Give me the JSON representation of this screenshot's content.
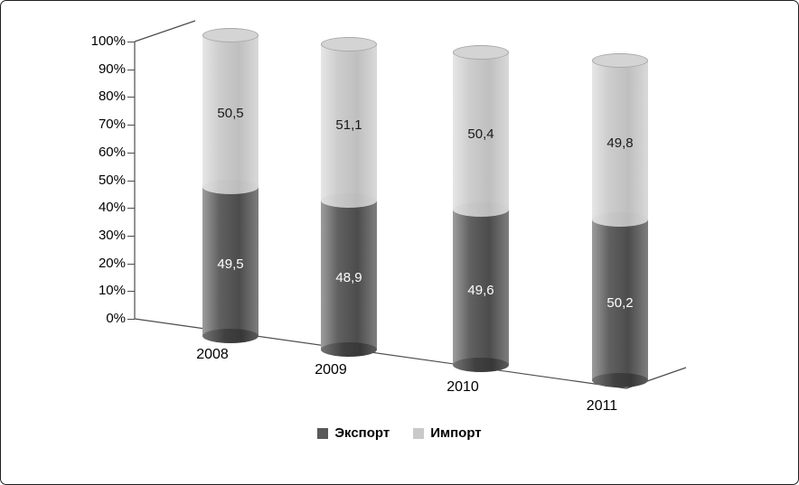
{
  "chart_data": {
    "type": "bar",
    "subtype": "3d-stacked-cylinder",
    "stacked": true,
    "categories": [
      "2008",
      "2009",
      "2010",
      "2011"
    ],
    "series": [
      {
        "name": "Экспорт",
        "color": "#595959",
        "values": [
          49.5,
          48.9,
          49.6,
          50.2
        ],
        "labels": [
          "49,5",
          "48,9",
          "49,6",
          "50,2"
        ]
      },
      {
        "name": "Импорт",
        "color": "#c9c9c9",
        "values": [
          50.5,
          51.1,
          50.4,
          49.8
        ],
        "labels": [
          "50,5",
          "51,1",
          "50,4",
          "49,8"
        ]
      }
    ],
    "y_axis": {
      "min": 0,
      "max": 100,
      "step": 10,
      "tick_labels": [
        "0%",
        "10%",
        "20%",
        "30%",
        "40%",
        "50%",
        "60%",
        "70%",
        "80%",
        "90%",
        "100%"
      ]
    },
    "legend": {
      "position": "bottom",
      "entries": [
        "Экспорт",
        "Импорт"
      ]
    }
  }
}
